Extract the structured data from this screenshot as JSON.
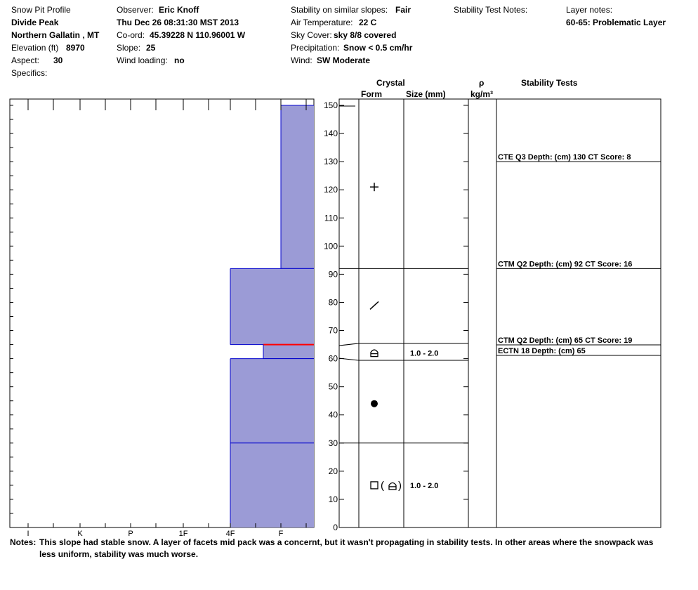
{
  "header": {
    "col1": {
      "title": "Snow Pit Profile",
      "location": "Divide Peak",
      "range": "Northern Gallatin , MT",
      "elevation_label": "Elevation (ft)",
      "elevation": "8970",
      "aspect_label": "Aspect:",
      "aspect": "30",
      "specifics_label": "Specifics:"
    },
    "col2": {
      "observer_label": "Observer:",
      "observer": "Eric Knoff",
      "datetime": "Thu Dec 26 08:31:30 MST 2013",
      "coord_label": "Co-ord:",
      "coord": "45.39228 N 110.96001 W",
      "slope_label": "Slope:",
      "slope": "25",
      "wind_loading_label": "Wind loading:",
      "wind_loading": "no"
    },
    "col3": {
      "stability_label": "Stability on similar slopes:",
      "stability": "Fair",
      "air_temp_label": "Air Temperature:",
      "air_temp": "22 C",
      "sky_label": "Sky Cover:",
      "sky": "sky 8/8 covered",
      "precip_label": "Precipitation:",
      "precip": "Snow < 0.5 cm/hr",
      "wind_label": "Wind:",
      "wind": "SW Moderate"
    },
    "col4": {
      "stability_notes_label": "Stability Test Notes:"
    },
    "col5": {
      "layer_notes_label": "Layer notes:",
      "layer_note": "60-65: Problematic Layer"
    }
  },
  "columns": {
    "crystal": "Crystal",
    "form": "Form",
    "size": "Size (mm)",
    "rho": "ρ",
    "density_unit": "kg/m³",
    "stability_tests": "Stability Tests"
  },
  "chart_data": {
    "type": "bar",
    "title": "",
    "hardness_scale": [
      "I",
      "K",
      "P",
      "1F",
      "4F",
      "F"
    ],
    "depth_axis": {
      "min": 0,
      "max": 150,
      "ticks": [
        0,
        10,
        20,
        30,
        40,
        50,
        60,
        70,
        80,
        90,
        100,
        110,
        120,
        130,
        140,
        150
      ]
    },
    "layers": [
      {
        "bottom": 92,
        "top": 150,
        "hardness": "F"
      },
      {
        "bottom": 65,
        "top": 92,
        "hardness": "4F"
      },
      {
        "bottom": 60,
        "top": 65,
        "hardness": "4F-F",
        "problematic": true
      },
      {
        "bottom": 30,
        "top": 60,
        "hardness": "4F"
      },
      {
        "bottom": 0,
        "top": 30,
        "hardness": "4F"
      }
    ],
    "crystals": [
      {
        "depth": 121,
        "form": "+",
        "size": ""
      },
      {
        "depth": 79,
        "form": "/",
        "size": ""
      },
      {
        "depth": 62,
        "form": "depth-hoar",
        "size": "1.0 - 2.0"
      },
      {
        "depth": 44,
        "form": "rounds",
        "size": ""
      },
      {
        "depth": 15,
        "form": "facets-depth-hoar",
        "size": "1.0 - 2.0"
      }
    ],
    "stability_tests": [
      {
        "depth": 130,
        "label": "CTE Q3 Depth: (cm) 130 CT Score: 8"
      },
      {
        "depth": 92,
        "label": "CTM Q2 Depth: (cm) 92 CT Score: 16"
      },
      {
        "depth": 65,
        "label": "CTM Q2 Depth: (cm) 65 CT Score: 19"
      },
      {
        "depth": 61,
        "label": "ECTN 18   Depth: (cm) 65"
      }
    ],
    "colors": {
      "layer_fill": "#9b9bd6",
      "layer_line": "#0000cc",
      "problem_line": "#ff0000"
    }
  },
  "notes": {
    "label": "Notes:",
    "line1": "This slope had stable snow. A layer of facets mid pack was a concernt, but it wasn't propagating in stability tests. In other areas where the snowpack was",
    "line2": "less uniform, stability was much worse."
  }
}
